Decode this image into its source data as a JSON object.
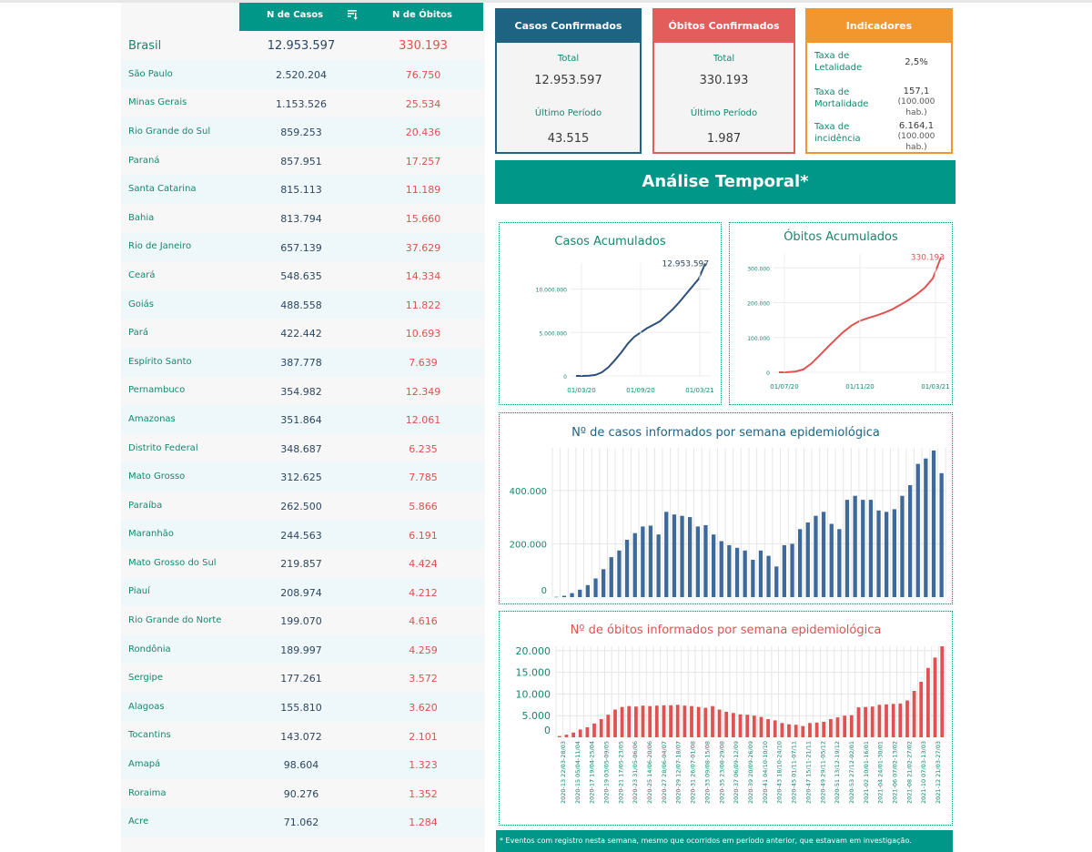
{
  "table": {
    "col_cases": "N de Casos",
    "col_deaths": "N de Óbitos",
    "brasil": {
      "name": "Brasil",
      "cases": "12.953.597",
      "deaths": "330.193"
    },
    "states": [
      {
        "name": "São Paulo",
        "cases": "2.520.204",
        "deaths": "76.750"
      },
      {
        "name": "Minas Gerais",
        "cases": "1.153.526",
        "deaths": "25.534"
      },
      {
        "name": "Rio Grande do Sul",
        "cases": "859.253",
        "deaths": "20.436"
      },
      {
        "name": "Paraná",
        "cases": "857.951",
        "deaths": "17.257"
      },
      {
        "name": "Santa Catarina",
        "cases": "815.113",
        "deaths": "11.189"
      },
      {
        "name": "Bahia",
        "cases": "813.794",
        "deaths": "15.660"
      },
      {
        "name": "Rio de Janeiro",
        "cases": "657.139",
        "deaths": "37.629"
      },
      {
        "name": "Ceará",
        "cases": "548.635",
        "deaths": "14.334"
      },
      {
        "name": "Goiás",
        "cases": "488.558",
        "deaths": "11.822"
      },
      {
        "name": "Pará",
        "cases": "422.442",
        "deaths": "10.693"
      },
      {
        "name": "Espírito Santo",
        "cases": "387.778",
        "deaths": "7.639"
      },
      {
        "name": "Pernambuco",
        "cases": "354.982",
        "deaths": "12.349"
      },
      {
        "name": "Amazonas",
        "cases": "351.864",
        "deaths": "12.061"
      },
      {
        "name": "Distrito Federal",
        "cases": "348.687",
        "deaths": "6.235"
      },
      {
        "name": "Mato Grosso",
        "cases": "312.625",
        "deaths": "7.785"
      },
      {
        "name": "Paraíba",
        "cases": "262.500",
        "deaths": "5.866"
      },
      {
        "name": "Maranhão",
        "cases": "244.563",
        "deaths": "6.191"
      },
      {
        "name": "Mato Grosso do Sul",
        "cases": "219.857",
        "deaths": "4.424"
      },
      {
        "name": "Piauí",
        "cases": "208.974",
        "deaths": "4.212"
      },
      {
        "name": "Rio Grande do Norte",
        "cases": "199.070",
        "deaths": "4.616"
      },
      {
        "name": "Rondônia",
        "cases": "189.997",
        "deaths": "4.259"
      },
      {
        "name": "Sergipe",
        "cases": "177.261",
        "deaths": "3.572"
      },
      {
        "name": "Alagoas",
        "cases": "155.810",
        "deaths": "3.620"
      },
      {
        "name": "Tocantins",
        "cases": "143.072",
        "deaths": "2.101"
      },
      {
        "name": "Amapá",
        "cases": "98.604",
        "deaths": "1.323"
      },
      {
        "name": "Roraima",
        "cases": "90.276",
        "deaths": "1.352"
      },
      {
        "name": "Acre",
        "cases": "71.062",
        "deaths": "1.284"
      }
    ]
  },
  "kpi": {
    "cases": {
      "title": "Casos Confirmados",
      "total_label": "Total",
      "total": "12.953.597",
      "period_label": "Último Período",
      "period": "43.515"
    },
    "deaths": {
      "title": "Óbitos Confirmados",
      "total_label": "Total",
      "total": "330.193",
      "period_label": "Último Período",
      "period": "1.987"
    },
    "indicators": {
      "title": "Indicadores",
      "items": [
        {
          "label": "Taxa de Letalidade",
          "value": "2,5%",
          "unit": ""
        },
        {
          "label": "Taxa de Mortalidade",
          "value": "157,1",
          "unit": "(100.000 hab.)"
        },
        {
          "label": "Taxa de incidência",
          "value": "6.164,1",
          "unit": "(100.000 hab.)"
        }
      ]
    }
  },
  "banner": "Análise Temporal*",
  "footnote": "* Eventos com registro nesta semana, mesmo que ocorridos em período anterior, que estavam em investigação.",
  "colors": {
    "teal": "#009688",
    "cases_blue": "#3d6a9b",
    "deaths_red": "#e05252",
    "orange": "#f2962e",
    "text_green": "#16866f"
  },
  "chart_data": [
    {
      "type": "line",
      "title": "Casos Acumulados",
      "end_label": "12.953.597",
      "x_ticks": [
        "01/03/20",
        "01/09/20",
        "01/03/21"
      ],
      "y_ticks": [
        "0",
        "5.000.000",
        "10.000.000"
      ],
      "ylim": [
        0,
        13000000
      ],
      "series": [
        {
          "values": [
            0,
            2000,
            30000,
            120000,
            420000,
            1000000,
            1800000,
            2700000,
            3700000,
            4500000,
            5000000,
            5500000,
            5900000,
            6300000,
            7000000,
            7700000,
            8500000,
            9400000,
            10300000,
            11200000,
            12953597
          ]
        }
      ]
    },
    {
      "type": "line",
      "title": "Óbitos Acumulados",
      "end_label": "330.193",
      "x_ticks": [
        "01/07/20",
        "01/11/20",
        "01/03/21"
      ],
      "y_ticks": [
        "0",
        "100.000",
        "200.000",
        "300.000"
      ],
      "ylim": [
        0,
        340000
      ],
      "series": [
        {
          "values": [
            0,
            150,
            2000,
            8000,
            25000,
            48000,
            72000,
            95000,
            117000,
            135000,
            148000,
            156000,
            163000,
            171000,
            181000,
            194000,
            208000,
            224000,
            243000,
            270000,
            330193
          ]
        }
      ]
    },
    {
      "type": "bar",
      "title": "Nº de casos informados por semana epidemiológica",
      "y_ticks": [
        "0",
        "200.000",
        "400.000"
      ],
      "ylim": [
        0,
        560000
      ],
      "values": [
        1000,
        5000,
        15000,
        28000,
        45000,
        70000,
        105000,
        150000,
        175000,
        215000,
        240000,
        265000,
        268000,
        235000,
        320000,
        310000,
        305000,
        300000,
        265000,
        270000,
        235000,
        210000,
        195000,
        185000,
        175000,
        140000,
        175000,
        155000,
        115000,
        195000,
        200000,
        255000,
        280000,
        305000,
        320000,
        275000,
        255000,
        365000,
        380000,
        365000,
        365000,
        325000,
        320000,
        330000,
        380000,
        420000,
        500000,
        520000,
        550000,
        465000
      ]
    },
    {
      "type": "bar",
      "title": "Nº de óbitos informados por semana epidemiológica",
      "y_ticks": [
        "0",
        "5.000",
        "10.000",
        "15.000",
        "20.000"
      ],
      "ylim": [
        0,
        21000
      ],
      "x_labels": [
        "2020-13 22/03-28/03",
        "2020-15 05/04-11/04",
        "2020-17 19/04-25/04",
        "2020-19 03/05-09/05",
        "2020-21 17/05-23/05",
        "2020-23 31/05-06/06",
        "2020-25 14/06-20/06",
        "2020-27 28/06-04/07",
        "2020-29 12/07-18/07",
        "2020-31 26/07-01/08",
        "2020-33 09/08-15/08",
        "2020-35 23/08-29/08",
        "2020-37 06/09-12/09",
        "2020-39 20/09-26/09",
        "2020-41 04/10-10/10",
        "2020-43 18/10-24/10",
        "2020-45 01/11-07/11",
        "2020-47 15/11-21/11",
        "2020-49 29/11-05/12",
        "2020-51 13/12-19/12",
        "2020-53 27/12-02/01",
        "2021-02 10/01-16/01",
        "2021-04 24/01-30/01",
        "2021-06 07/02-13/02",
        "2021-08 21/02-27/02",
        "2021-10 07/03-13/03",
        "2021-12 21/03-27/03"
      ],
      "values": [
        300,
        600,
        1100,
        1800,
        2300,
        3200,
        4200,
        5200,
        6400,
        7000,
        7200,
        7100,
        7300,
        7200,
        7300,
        7400,
        7400,
        7500,
        7300,
        7200,
        7000,
        6800,
        7200,
        6400,
        5900,
        5600,
        5300,
        5200,
        5000,
        4700,
        4200,
        3900,
        3300,
        3000,
        2900,
        2600,
        3300,
        3400,
        3600,
        4200,
        4600,
        5000,
        5100,
        6900,
        7000,
        7100,
        7500,
        7600,
        7700,
        7800,
        8500,
        10700,
        12800,
        16000,
        18400,
        21000
      ]
    }
  ]
}
